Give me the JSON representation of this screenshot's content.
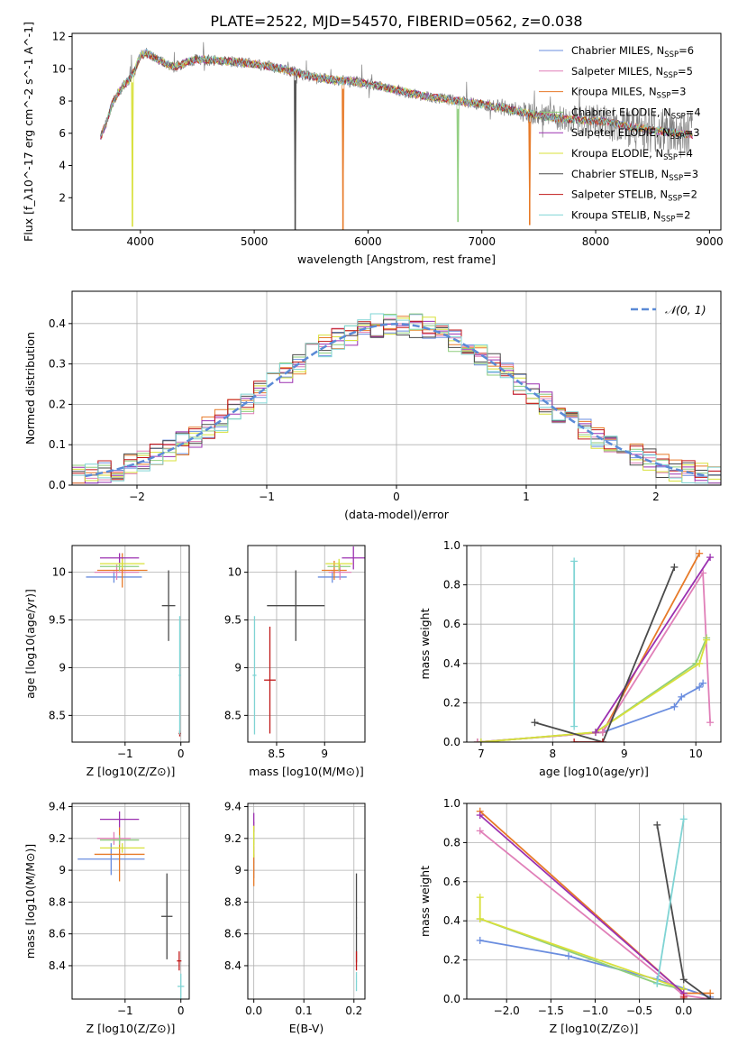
{
  "figure_title": "PLATE=2522, MJD=54570, FIBERID=0562, z=0.038",
  "colors": {
    "Chabrier MILES": "#6a8ddf",
    "Salpeter MILES": "#e07fb8",
    "Kroupa MILES": "#e77a28",
    "Chabrier ELODIE": "#8fce7e",
    "Salpeter ELODIE": "#9b30b0",
    "Kroupa ELODIE": "#d8e03a",
    "Chabrier STELIB": "#4a4a4a",
    "Salpeter STELIB": "#c01818",
    "Kroupa STELIB": "#7fd4d4",
    "data": "#808080",
    "gaussian": "#5b8ad6"
  },
  "chart_data": [
    {
      "type": "line",
      "title": "PLATE=2522, MJD=54570, FIBERID=0562, z=0.038",
      "xlabel": "wavelength [Angstrom, rest frame]",
      "ylabel": "Flux [f_λ10^-17 erg cm^-2 s^-1 A^-1]",
      "xlim": [
        3400,
        9100
      ],
      "ylim": [
        0,
        12.2
      ],
      "xticks": [
        4000,
        5000,
        6000,
        7000,
        8000,
        9000
      ],
      "yticks": [
        2,
        4,
        6,
        8,
        10,
        12
      ],
      "grid": false,
      "legend_position": "top-right",
      "legend": [
        {
          "name": "Chabrier MILES",
          "nssp": "6"
        },
        {
          "name": "Salpeter MILES",
          "nssp": "5"
        },
        {
          "name": "Kroupa MILES",
          "nssp": "3"
        },
        {
          "name": "Chabrier ELODIE",
          "nssp": "4"
        },
        {
          "name": "Salpeter ELODIE",
          "nssp": "3"
        },
        {
          "name": "Kroupa ELODIE",
          "nssp": "4"
        },
        {
          "name": "Chabrier STELIB",
          "nssp": "3"
        },
        {
          "name": "Salpeter STELIB",
          "nssp": "2"
        },
        {
          "name": "Kroupa STELIB",
          "nssp": "2"
        }
      ],
      "continuum": {
        "x": [
          3650,
          3700,
          3750,
          3800,
          3850,
          3900,
          3950,
          4000,
          4050,
          4100,
          4200,
          4300,
          4400,
          4500,
          4700,
          4900,
          5100,
          5300,
          5500,
          5700,
          5900,
          6100,
          6300,
          6500,
          6700,
          6900,
          7100,
          7300,
          7500,
          7700,
          7900,
          8100,
          8300,
          8500,
          8700,
          8850
        ],
        "y": [
          5.8,
          6.6,
          7.8,
          8.4,
          9.0,
          9.3,
          9.9,
          10.8,
          11.0,
          10.8,
          10.4,
          10.1,
          10.4,
          10.6,
          10.5,
          10.4,
          10.2,
          9.9,
          9.5,
          9.3,
          9.2,
          8.9,
          8.6,
          8.3,
          8.1,
          7.9,
          7.7,
          7.4,
          7.1,
          6.9,
          6.8,
          6.7,
          6.4,
          6.2,
          6.0,
          5.9
        ]
      },
      "dips": [
        {
          "x": 3930,
          "y": 0.2,
          "series": "Kroupa ELODIE"
        },
        {
          "x": 5360,
          "y": 0.0,
          "series": "Chabrier STELIB"
        },
        {
          "x": 5780,
          "y": 0.0,
          "series": "Kroupa MILES"
        },
        {
          "x": 6790,
          "y": 0.5,
          "series": "Chabrier ELODIE"
        },
        {
          "x": 7420,
          "y": 0.3,
          "series": "Kroupa MILES"
        }
      ]
    },
    {
      "type": "bar",
      "xlabel": "(data-model)/error",
      "ylabel": "Normed distribution",
      "xlim": [
        -2.5,
        2.5
      ],
      "ylim": [
        0,
        0.48
      ],
      "xticks": [
        -2,
        -1,
        0,
        1,
        2
      ],
      "yticks": [
        0.0,
        0.1,
        0.2,
        0.3,
        0.4
      ],
      "grid": true,
      "legend_position": "top-right",
      "legend_label": "𝒩(0, 1)",
      "bin_width": 0.1
    },
    {
      "type": "scatter",
      "xlabel": "Z [log10(Z/Z⊙)]",
      "ylabel": "age [log10(age/yr)]",
      "xlim": [
        -1.95,
        0.15
      ],
      "ylim": [
        8.22,
        10.28
      ],
      "xticks": [
        -1,
        0
      ],
      "yticks": [
        8.5,
        9.0,
        9.5,
        10.0
      ],
      "grid": true
    },
    {
      "type": "scatter",
      "xlabel": "mass [log10(M/M⊙)]",
      "ylabel": "",
      "xlim": [
        8.2,
        9.42
      ],
      "ylim": [
        8.22,
        10.28
      ],
      "xticks": [
        8.5,
        9.0
      ],
      "yticks": [
        8.5,
        9.0,
        9.5,
        10.0
      ],
      "grid": true
    },
    {
      "type": "line",
      "xlabel": "age [log10(age/yr)]",
      "ylabel": "mass weight",
      "xlim": [
        6.8,
        10.35
      ],
      "ylim": [
        0,
        1
      ],
      "xticks": [
        7,
        8,
        9,
        10
      ],
      "yticks": [
        0.0,
        0.2,
        0.4,
        0.6,
        0.8,
        1.0
      ],
      "grid": true
    },
    {
      "type": "scatter",
      "xlabel": "Z [log10(Z/Z⊙)]",
      "ylabel": "mass [log10(M/M⊙)]",
      "xlim": [
        -1.95,
        0.15
      ],
      "ylim": [
        8.19,
        9.42
      ],
      "xticks": [
        -1,
        0
      ],
      "yticks": [
        8.4,
        8.6,
        8.8,
        9.0,
        9.2,
        9.4
      ],
      "grid": true
    },
    {
      "type": "scatter",
      "xlabel": "E(B-V)",
      "ylabel": "",
      "xlim": [
        -0.012,
        0.222
      ],
      "ylim": [
        8.19,
        9.42
      ],
      "xticks": [
        0.0,
        0.1,
        0.2
      ],
      "yticks": [
        8.4,
        8.6,
        8.8,
        9.0,
        9.2,
        9.4
      ],
      "grid": true
    },
    {
      "type": "line",
      "xlabel": "Z [log10(Z/Z⊙)]",
      "ylabel": "mass weight",
      "xlim": [
        -2.45,
        0.42
      ],
      "ylim": [
        0,
        1
      ],
      "xticks": [
        -2.0,
        -1.5,
        -1.0,
        -0.5,
        0.0
      ],
      "yticks": [
        0.0,
        0.2,
        0.4,
        0.6,
        0.8,
        1.0
      ],
      "grid": true
    }
  ]
}
